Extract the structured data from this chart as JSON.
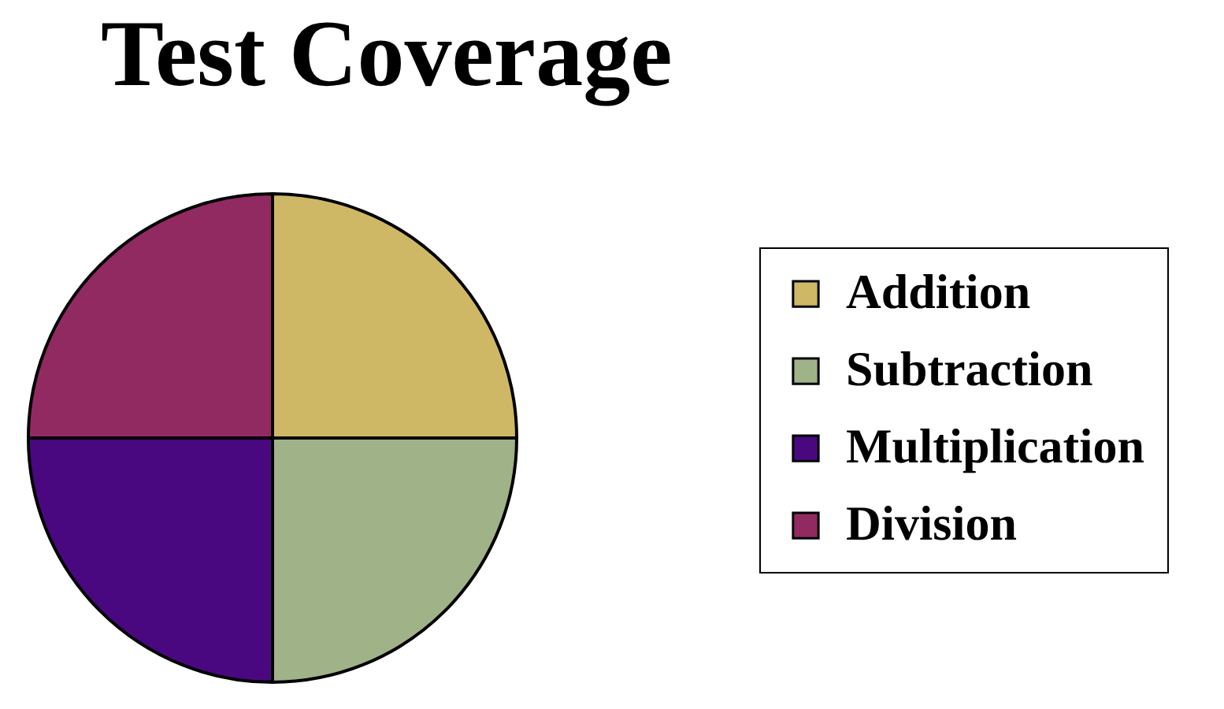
{
  "chart_data": {
    "type": "pie",
    "title": "Test Coverage",
    "categories": [
      "Addition",
      "Subtraction",
      "Multiplication",
      "Division"
    ],
    "values": [
      25,
      25,
      25,
      25
    ],
    "colors": [
      "#cfb865",
      "#a0b288",
      "#4a0880",
      "#922a62"
    ],
    "legend": "right"
  }
}
